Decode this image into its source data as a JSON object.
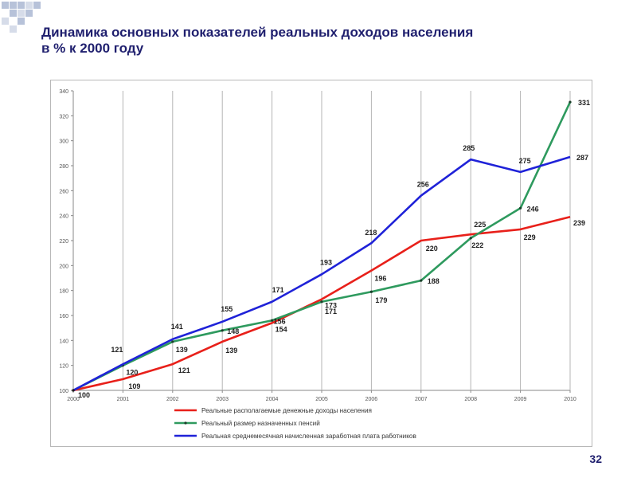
{
  "slide": {
    "title_line1": "Динамика основных показателей реальных доходов населения",
    "title_line2": "в % к 2000 году",
    "page_number": "32"
  },
  "colors": {
    "title": "#1f1f6e",
    "income": "#e8201a",
    "pensions": "#2e9a5e",
    "wages": "#1f22d8",
    "decor_squares": "#b7c2d9"
  },
  "chart_data": {
    "type": "line",
    "title": "",
    "xlabel": "",
    "ylabel": "",
    "ylim": [
      100,
      340
    ],
    "y_ticks": [
      100,
      120,
      140,
      160,
      180,
      200,
      220,
      240,
      260,
      280,
      300,
      320,
      340
    ],
    "grid": "vertical lines at each year",
    "legend_position": "bottom",
    "categories": [
      "2000",
      "2001",
      "2002",
      "2003",
      "2004",
      "2005",
      "2006",
      "2007",
      "2008",
      "2009",
      "2010"
    ],
    "series": [
      {
        "name": "Реальные располагаемые денежные доходы населения",
        "color": "#e8201a",
        "values": [
          100,
          109,
          121,
          139,
          154,
          173,
          196,
          220,
          225,
          229,
          239
        ],
        "labels": [
          "100",
          "109",
          "121",
          "139",
          "154",
          "173",
          "196",
          "220",
          "225",
          "229",
          "239"
        ]
      },
      {
        "name": "Реальный размер назначенных пенсий",
        "color": "#2e9a5e",
        "values": [
          100,
          120,
          139,
          148,
          156,
          171,
          179,
          188,
          222,
          246,
          331
        ],
        "labels": [
          "",
          "120",
          "139",
          "148",
          "156",
          "171",
          "179",
          "188",
          "222",
          "246",
          "331"
        ]
      },
      {
        "name": "Реальная среднемесячная начисленная заработная плата работников",
        "color": "#1f22d8",
        "values": [
          100,
          121,
          141,
          155,
          171,
          193,
          218,
          256,
          285,
          275,
          287
        ],
        "labels": [
          "",
          "121",
          "141",
          "155",
          "171",
          "193",
          "218",
          "256",
          "285",
          "275",
          "287"
        ]
      }
    ]
  }
}
